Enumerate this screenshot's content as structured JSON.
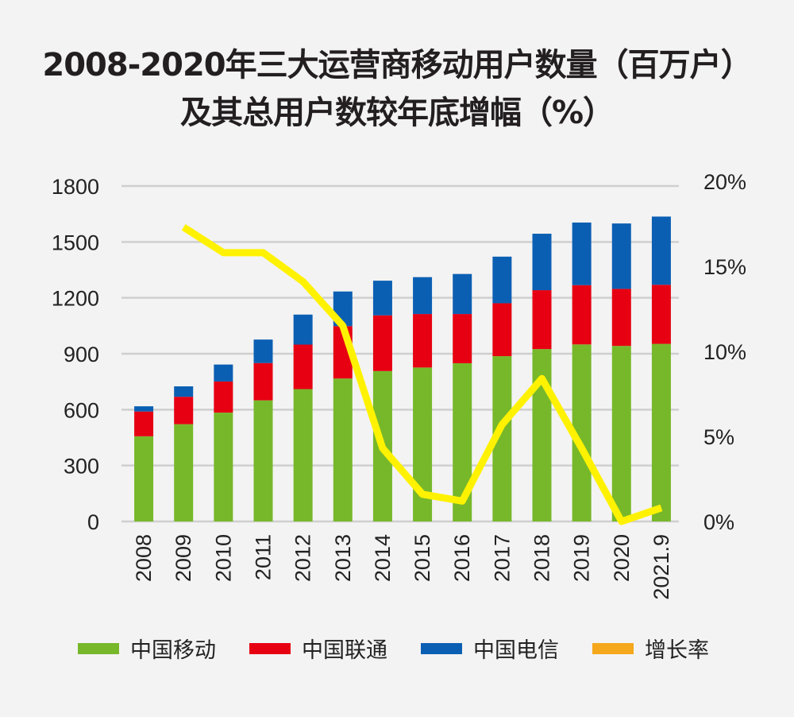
{
  "title": {
    "line1": "2008-2020年三大运营商移动用户数量（百万户）",
    "line2": "及其总用户数较年底增幅（%）"
  },
  "chart_data": {
    "type": "bar",
    "stacked": true,
    "title": "2008-2020年三大运营商移动用户数量（百万户）及其总用户数较年底增幅（%）",
    "categories": [
      "2008",
      "2009",
      "2010",
      "2011",
      "2012",
      "2013",
      "2014",
      "2015",
      "2016",
      "2017",
      "2018",
      "2019",
      "2020",
      "2021.9"
    ],
    "series": [
      {
        "name": "中国移动",
        "type": "bar",
        "axis": "left",
        "color": "#77b82a",
        "values": [
          457,
          522,
          584,
          650,
          710,
          767,
          807,
          826,
          849,
          887,
          925,
          950,
          942,
          953
        ]
      },
      {
        "name": "中国联通",
        "type": "bar",
        "axis": "left",
        "color": "#e60012",
        "values": [
          133,
          147,
          167,
          200,
          239,
          281,
          299,
          287,
          264,
          284,
          316,
          318,
          306,
          317
        ]
      },
      {
        "name": "中国电信",
        "type": "bar",
        "axis": "left",
        "color": "#0b5fb3",
        "values": [
          28,
          56,
          91,
          126,
          161,
          186,
          186,
          198,
          215,
          250,
          303,
          336,
          351,
          366
        ]
      },
      {
        "name": "增长率",
        "type": "line",
        "axis": "right",
        "color": "#fff200",
        "legend_color": "#f5a81c",
        "values": [
          null,
          17.3,
          15.8,
          15.8,
          14.1,
          11.5,
          4.3,
          1.6,
          1.2,
          5.7,
          8.4,
          4.3,
          0.0,
          0.8
        ]
      }
    ],
    "y_left": {
      "min": 0,
      "max": 1800,
      "ticks": [
        0,
        300,
        600,
        900,
        1200,
        1500,
        1800
      ],
      "tick_labels": [
        "0",
        "300",
        "600",
        "900",
        "1200",
        "1500",
        "1800"
      ]
    },
    "y_right": {
      "min": 0,
      "max": 20,
      "ticks": [
        0,
        5,
        10,
        15,
        20
      ],
      "tick_labels": [
        "0%",
        "5%",
        "10%",
        "15%",
        "20%"
      ]
    },
    "xlabel": "",
    "ylabel": "",
    "grid": true,
    "legend_position": "bottom"
  },
  "legend": [
    {
      "label": "中国移动",
      "color": "#77b82a"
    },
    {
      "label": "中国联通",
      "color": "#e60012"
    },
    {
      "label": "中国电信",
      "color": "#0b5fb3"
    },
    {
      "label": "增长率",
      "color": "#f5a81c"
    }
  ]
}
